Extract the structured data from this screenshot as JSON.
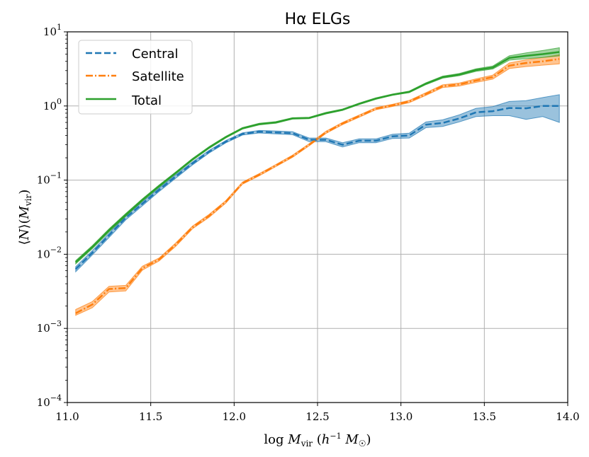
{
  "chart_data": {
    "type": "line",
    "title": "Hα ELGs",
    "xlabel": "log M_vir (h⁻¹ M☉)",
    "ylabel": "⟨N⟩(M_vir)",
    "xlim": [
      11.0,
      14.0
    ],
    "ylim_log10": [
      -4,
      1
    ],
    "yscale": "log",
    "grid": true,
    "legend_position": "top-left",
    "x_ticks": [
      "11.0",
      "11.5",
      "12.0",
      "12.5",
      "13.0",
      "13.5",
      "14.0"
    ],
    "x_tick_values": [
      11.0,
      11.5,
      12.0,
      12.5,
      13.0,
      13.5,
      14.0
    ],
    "y_ticks": [
      {
        "base": "10",
        "exp": "−4",
        "value": -4
      },
      {
        "base": "10",
        "exp": "−3",
        "value": -3
      },
      {
        "base": "10",
        "exp": "−2",
        "value": -2
      },
      {
        "base": "10",
        "exp": "−1",
        "value": -1
      },
      {
        "base": "10",
        "exp": "0",
        "value": 0
      },
      {
        "base": "10",
        "exp": "1",
        "value": 1
      }
    ],
    "x": [
      11.05,
      11.15,
      11.25,
      11.35,
      11.45,
      11.55,
      11.65,
      11.75,
      11.85,
      11.95,
      12.05,
      12.15,
      12.25,
      12.35,
      12.45,
      12.55,
      12.65,
      12.75,
      12.85,
      12.95,
      13.05,
      13.15,
      13.25,
      13.35,
      13.45,
      13.55,
      13.65,
      13.75,
      13.85,
      13.95
    ],
    "series": [
      {
        "name": "Central",
        "color": "#1f77b4",
        "style": "dashed",
        "values": [
          0.0063,
          0.0105,
          0.018,
          0.031,
          0.048,
          0.074,
          0.112,
          0.168,
          0.242,
          0.33,
          0.42,
          0.45,
          0.44,
          0.43,
          0.35,
          0.35,
          0.3,
          0.34,
          0.34,
          0.39,
          0.4,
          0.56,
          0.59,
          0.68,
          0.82,
          0.85,
          0.94,
          0.93,
          1.0,
          1.0
        ],
        "lower": [
          0.0058,
          0.0098,
          0.0168,
          0.029,
          0.045,
          0.07,
          0.106,
          0.16,
          0.232,
          0.318,
          0.405,
          0.432,
          0.42,
          0.41,
          0.33,
          0.33,
          0.28,
          0.32,
          0.32,
          0.365,
          0.37,
          0.51,
          0.53,
          0.61,
          0.72,
          0.74,
          0.74,
          0.66,
          0.72,
          0.6
        ],
        "upper": [
          0.0068,
          0.0112,
          0.0192,
          0.033,
          0.051,
          0.078,
          0.118,
          0.176,
          0.252,
          0.342,
          0.435,
          0.468,
          0.46,
          0.45,
          0.37,
          0.37,
          0.32,
          0.36,
          0.36,
          0.415,
          0.43,
          0.61,
          0.65,
          0.76,
          0.93,
          0.98,
          1.15,
          1.18,
          1.3,
          1.42
        ]
      },
      {
        "name": "Satellite",
        "color": "#ff7f0e",
        "style": "dashdot",
        "values": [
          0.0016,
          0.0021,
          0.0034,
          0.0035,
          0.0065,
          0.0085,
          0.0135,
          0.023,
          0.033,
          0.051,
          0.091,
          0.118,
          0.157,
          0.21,
          0.3,
          0.44,
          0.58,
          0.73,
          0.92,
          1.02,
          1.15,
          1.45,
          1.85,
          1.95,
          2.2,
          2.45,
          3.5,
          3.8,
          4.0,
          4.3
        ],
        "lower": [
          0.0015,
          0.0019,
          0.0031,
          0.0032,
          0.0061,
          0.0081,
          0.0128,
          0.022,
          0.0315,
          0.049,
          0.088,
          0.114,
          0.152,
          0.203,
          0.29,
          0.425,
          0.56,
          0.705,
          0.89,
          0.985,
          1.11,
          1.39,
          1.77,
          1.86,
          2.08,
          2.3,
          3.2,
          3.4,
          3.55,
          3.7
        ],
        "upper": [
          0.0018,
          0.0023,
          0.0037,
          0.0038,
          0.0069,
          0.0089,
          0.0142,
          0.024,
          0.0345,
          0.053,
          0.094,
          0.122,
          0.162,
          0.217,
          0.31,
          0.455,
          0.6,
          0.755,
          0.95,
          1.055,
          1.19,
          1.51,
          1.93,
          2.04,
          2.32,
          2.6,
          3.8,
          4.2,
          4.5,
          4.9
        ]
      },
      {
        "name": "Total",
        "color": "#2ca02c",
        "style": "solid",
        "values": [
          0.0078,
          0.0125,
          0.021,
          0.034,
          0.054,
          0.083,
          0.125,
          0.19,
          0.275,
          0.38,
          0.5,
          0.57,
          0.6,
          0.68,
          0.69,
          0.8,
          0.89,
          1.07,
          1.26,
          1.42,
          1.55,
          2.0,
          2.45,
          2.65,
          3.05,
          3.3,
          4.45,
          4.75,
          5.0,
          5.35
        ],
        "lower": [
          0.0074,
          0.0119,
          0.02,
          0.0325,
          0.052,
          0.08,
          0.121,
          0.184,
          0.267,
          0.37,
          0.488,
          0.555,
          0.585,
          0.665,
          0.675,
          0.78,
          0.87,
          1.045,
          1.23,
          1.39,
          1.51,
          1.94,
          2.37,
          2.56,
          2.93,
          3.15,
          4.15,
          4.35,
          4.5,
          4.75
        ],
        "upper": [
          0.0082,
          0.0131,
          0.022,
          0.0355,
          0.056,
          0.086,
          0.129,
          0.196,
          0.283,
          0.39,
          0.512,
          0.585,
          0.615,
          0.695,
          0.705,
          0.82,
          0.91,
          1.095,
          1.29,
          1.45,
          1.59,
          2.06,
          2.53,
          2.74,
          3.17,
          3.45,
          4.75,
          5.2,
          5.6,
          6.1
        ]
      }
    ]
  }
}
